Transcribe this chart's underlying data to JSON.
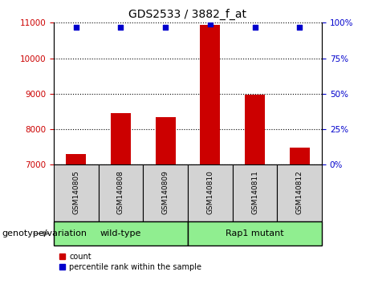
{
  "title": "GDS2533 / 3882_f_at",
  "samples": [
    "GSM140805",
    "GSM140808",
    "GSM140809",
    "GSM140810",
    "GSM140811",
    "GSM140812"
  ],
  "counts": [
    7300,
    8450,
    8350,
    10950,
    8980,
    7480
  ],
  "percentile_ranks": [
    97,
    97,
    97,
    99,
    97,
    97
  ],
  "ylim_left": [
    7000,
    11000
  ],
  "ylim_right": [
    0,
    100
  ],
  "yticks_left": [
    7000,
    8000,
    9000,
    10000,
    11000
  ],
  "yticks_right": [
    0,
    25,
    50,
    75,
    100
  ],
  "bar_color": "#cc0000",
  "dot_color": "#0000cc",
  "groups": [
    {
      "label": "wild-type",
      "start": 0,
      "end": 2
    },
    {
      "label": "Rap1 mutant",
      "start": 3,
      "end": 5
    }
  ],
  "xlabel_group": "genotype/variation",
  "legend_count_label": "count",
  "legend_pct_label": "percentile rank within the sample",
  "background_plot": "#ffffff",
  "background_sample": "#d3d3d3",
  "background_group": "#90ee90",
  "yticklabel_color_left": "#cc0000",
  "yticklabel_color_right": "#0000cc",
  "base_count": 7000,
  "title_fontsize": 10,
  "tick_fontsize": 7.5,
  "sample_fontsize": 6.5,
  "group_fontsize": 8,
  "legend_fontsize": 7,
  "genotype_fontsize": 8
}
